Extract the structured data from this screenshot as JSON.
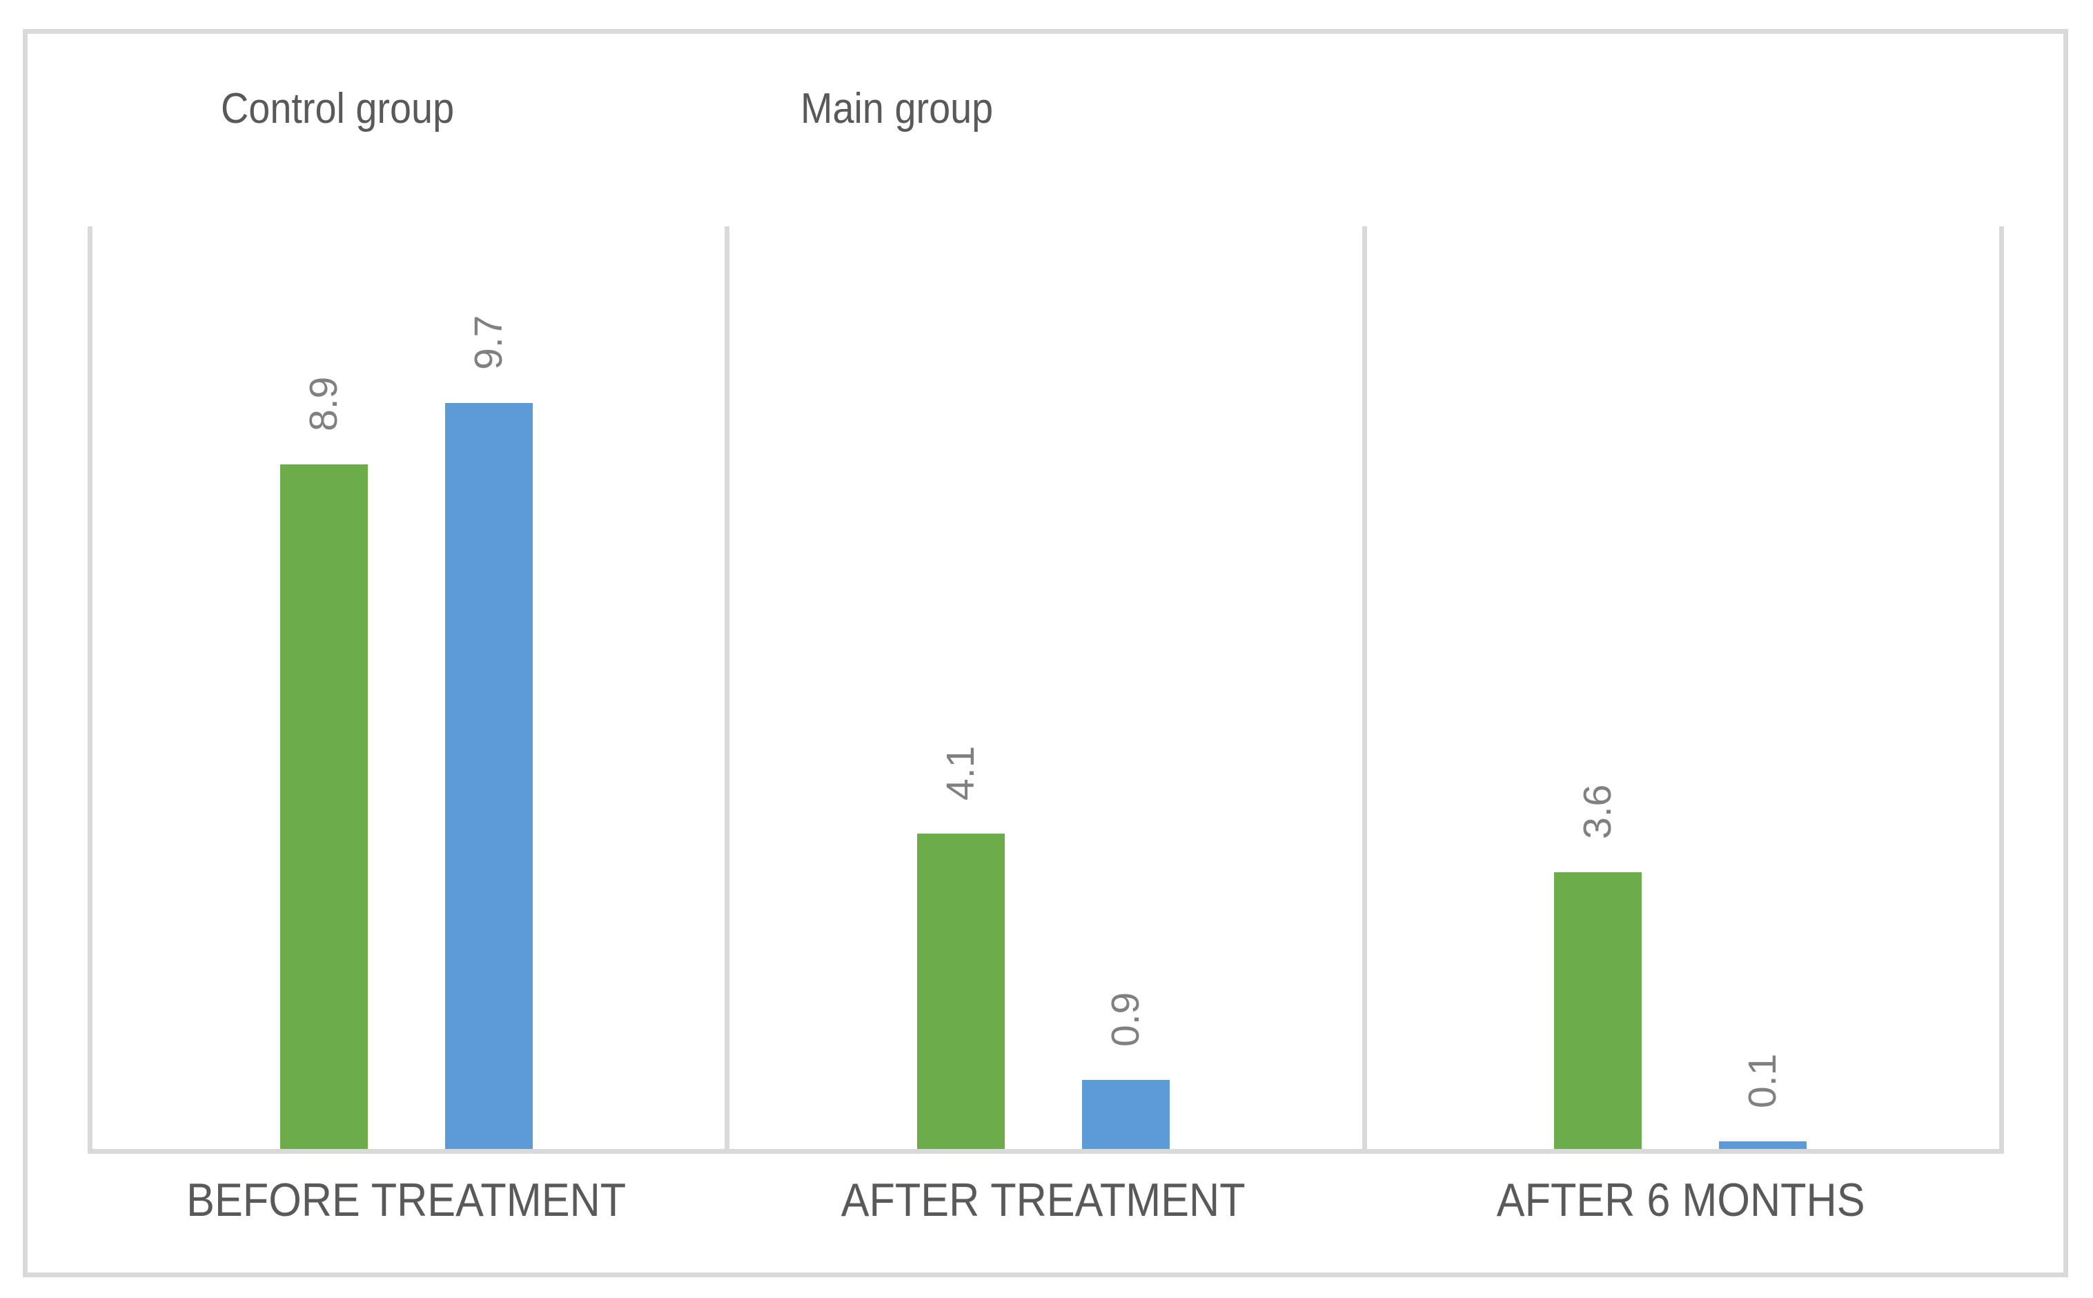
{
  "chart_data": {
    "type": "bar",
    "categories": [
      "BEFORE TREATMENT",
      "AFTER TREATMENT",
      "AFTER 6 MONTHS"
    ],
    "series": [
      {
        "name": "Control group",
        "color": "#6CAC4A",
        "values": [
          8.9,
          4.1,
          3.6
        ]
      },
      {
        "name": "Main group",
        "color": "#5C9BD5",
        "values": [
          9.7,
          0.9,
          0.1
        ]
      }
    ],
    "value_labels": [
      [
        "8.9",
        "9.7"
      ],
      [
        "4.1",
        "0.9"
      ],
      [
        "3.6",
        "0.1"
      ]
    ],
    "title": "",
    "xlabel": "",
    "ylabel": "",
    "ylim": [
      0,
      12
    ],
    "y_axis_visible": false,
    "grid": "vertical category separator lines only",
    "legend_position": "series names shown as plain text labels above plot",
    "value_label_rotation": -90,
    "colors": {
      "axis_and_grid_lines": "#D9D9D9",
      "frame_border": "#D9D9D9",
      "value_label_text": "#808080",
      "category_and_title_text": "#595959",
      "background": "#FFFFFF"
    }
  }
}
